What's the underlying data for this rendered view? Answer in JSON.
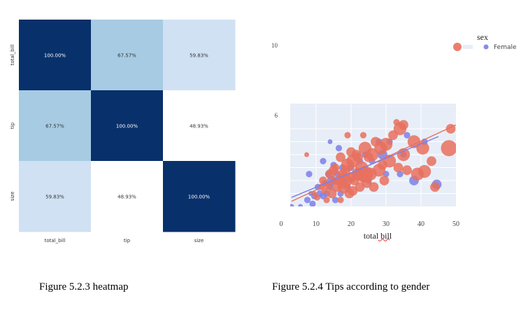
{
  "chart_data": [
    {
      "type": "heatmap",
      "rows": [
        "total_bill",
        "tip",
        "size"
      ],
      "columns": [
        "total_bill",
        "tip",
        "size"
      ],
      "values": [
        [
          1.0,
          0.6757,
          0.5983
        ],
        [
          0.6757,
          1.0,
          0.4893
        ],
        [
          0.5983,
          0.4893,
          1.0
        ]
      ],
      "labels": [
        [
          "100.00%",
          "67.57%",
          "59.83%"
        ],
        [
          "67.57%",
          "100.00%",
          "48.93%"
        ],
        [
          "59.83%",
          "48.93%",
          "100.00%"
        ]
      ],
      "colormap": "Blues",
      "colors": {
        "high": "#08306b",
        "mid": "#a6cbe3",
        "low": "#cfe1f3",
        "min": "#ffffff"
      },
      "grid": false
    },
    {
      "type": "scatter",
      "xlabel": "total bill",
      "xticks": [
        0,
        10,
        20,
        30,
        40,
        50
      ],
      "yticks": [
        6,
        10
      ],
      "xlim": [
        0,
        50
      ],
      "ylim": [
        1,
        10
      ],
      "legend": {
        "title": "sex",
        "entries": [
          "Female"
        ],
        "placement": "top-right"
      },
      "colors": {
        "Male": "#e8705e",
        "Female": "#7b7fe8",
        "panel": "#e8eef7"
      },
      "series": [
        {
          "color": "#e8705e",
          "points": [
            [
              7.3,
              5.0,
              1.5
            ],
            [
              9.5,
              2.0,
              1.5
            ],
            [
              10.3,
              1.7,
              2
            ],
            [
              11.5,
              2.5,
              2
            ],
            [
              12.0,
              3.0,
              2.5
            ],
            [
              12.5,
              2.2,
              2
            ],
            [
              13.0,
              1.5,
              2
            ],
            [
              13.5,
              2.6,
              2.5
            ],
            [
              14.0,
              3.5,
              3
            ],
            [
              14.5,
              2.0,
              3
            ],
            [
              15.0,
              3.0,
              2
            ],
            [
              15.5,
              4.0,
              2.5
            ],
            [
              16.0,
              2.5,
              3
            ],
            [
              16.5,
              3.0,
              3
            ],
            [
              17.0,
              1.5,
              2
            ],
            [
              17.5,
              3.5,
              3
            ],
            [
              18.0,
              2.5,
              4
            ],
            [
              18.5,
              3.8,
              3
            ],
            [
              19.0,
              4.2,
              4
            ],
            [
              19.5,
              2.0,
              3
            ],
            [
              20.0,
              3.2,
              3
            ],
            [
              20.5,
              4.5,
              4
            ],
            [
              21.0,
              3.0,
              3
            ],
            [
              21.5,
              5.0,
              3
            ],
            [
              22.0,
              3.5,
              4
            ],
            [
              22.5,
              2.5,
              3
            ],
            [
              23.0,
              4.0,
              4
            ],
            [
              23.5,
              3.2,
              3
            ],
            [
              24.0,
              5.5,
              4
            ],
            [
              24.5,
              2.8,
              3
            ],
            [
              25.0,
              4.8,
              3
            ],
            [
              25.5,
              3.5,
              4
            ],
            [
              26.0,
              5.0,
              4
            ],
            [
              26.5,
              2.5,
              3
            ],
            [
              27.0,
              6.0,
              3
            ],
            [
              28.0,
              3.8,
              4
            ],
            [
              28.5,
              5.5,
              4
            ],
            [
              29.0,
              4.2,
              3
            ],
            [
              29.5,
              3.0,
              3
            ],
            [
              30.0,
              5.8,
              4
            ],
            [
              31.0,
              4.5,
              4
            ],
            [
              32.0,
              6.5,
              3
            ],
            [
              33.5,
              4.0,
              3
            ],
            [
              34.0,
              7.0,
              4
            ],
            [
              35.0,
              5.0,
              4
            ],
            [
              36.0,
              3.8,
              3
            ],
            [
              38.0,
              6.0,
              4
            ],
            [
              39.0,
              3.5,
              4
            ],
            [
              40.5,
              5.5,
              4
            ],
            [
              41.0,
              3.7,
              4
            ],
            [
              43.0,
              4.5,
              3
            ],
            [
              44.0,
              2.5,
              3
            ],
            [
              48.0,
              5.5,
              5
            ],
            [
              48.5,
              7.0,
              3
            ],
            [
              35.0,
              7.3,
              3
            ],
            [
              33.0,
              7.5,
              2
            ],
            [
              23.5,
              6.5,
              2
            ],
            [
              20.0,
              5.2,
              3
            ],
            [
              15.0,
              3.8,
              3
            ],
            [
              17.0,
              4.8,
              3
            ],
            [
              19.0,
              6.5,
              2
            ],
            [
              22.0,
              4.8,
              3
            ],
            [
              24.0,
              3.5,
              5
            ],
            [
              18.0,
              3.0,
              5
            ],
            [
              20.5,
              2.2,
              3
            ]
          ]
        },
        {
          "color": "#7b7fe8",
          "points": [
            [
              3.0,
              1.0,
              1.5
            ],
            [
              5.5,
              1.0,
              1.5
            ],
            [
              7.5,
              1.5,
              2
            ],
            [
              8.5,
              2.0,
              1.5
            ],
            [
              9.0,
              1.2,
              2
            ],
            [
              9.5,
              1.8,
              2
            ],
            [
              10.5,
              2.5,
              2
            ],
            [
              11.0,
              2.0,
              2
            ],
            [
              12.0,
              1.8,
              2
            ],
            [
              12.5,
              2.8,
              2
            ],
            [
              13.0,
              2.0,
              2
            ],
            [
              13.5,
              3.5,
              2
            ],
            [
              14.0,
              2.5,
              2
            ],
            [
              14.5,
              3.0,
              3
            ],
            [
              15.0,
              4.2,
              2
            ],
            [
              15.5,
              1.5,
              2
            ],
            [
              16.0,
              3.5,
              2
            ],
            [
              17.0,
              2.0,
              2
            ],
            [
              17.5,
              4.0,
              2
            ],
            [
              18.0,
              3.0,
              2
            ],
            [
              19.0,
              2.5,
              2
            ],
            [
              20.0,
              4.0,
              2
            ],
            [
              21.0,
              3.5,
              2
            ],
            [
              22.5,
              4.5,
              2
            ],
            [
              24.0,
              5.0,
              2
            ],
            [
              25.0,
              3.0,
              2
            ],
            [
              26.0,
              4.5,
              2
            ],
            [
              28.0,
              6.0,
              2
            ],
            [
              29.0,
              5.0,
              3
            ],
            [
              30.0,
              3.5,
              2
            ],
            [
              31.0,
              6.0,
              2
            ],
            [
              34.0,
              3.5,
              2
            ],
            [
              35.0,
              5.0,
              2
            ],
            [
              36.0,
              6.5,
              2
            ],
            [
              38.0,
              3.0,
              3
            ],
            [
              41.0,
              6.0,
              2
            ],
            [
              44.5,
              2.7,
              3
            ],
            [
              12.0,
              4.5,
              2
            ],
            [
              16.5,
              5.5,
              2
            ],
            [
              8.0,
              3.5,
              2
            ],
            [
              14.0,
              6.0,
              1.5
            ]
          ]
        }
      ],
      "trendlines": [
        {
          "color": "#e8705e",
          "x": [
            3,
            50
          ],
          "y": [
            1.4,
            7.3
          ]
        },
        {
          "color": "#7b7fe8",
          "x": [
            3,
            45
          ],
          "y": [
            1.7,
            6.4
          ]
        }
      ]
    }
  ],
  "captions": {
    "heatmap": "Figure 5.2.3 heatmap",
    "scatter": "Figure 5.2.4 Tips according to gender"
  }
}
